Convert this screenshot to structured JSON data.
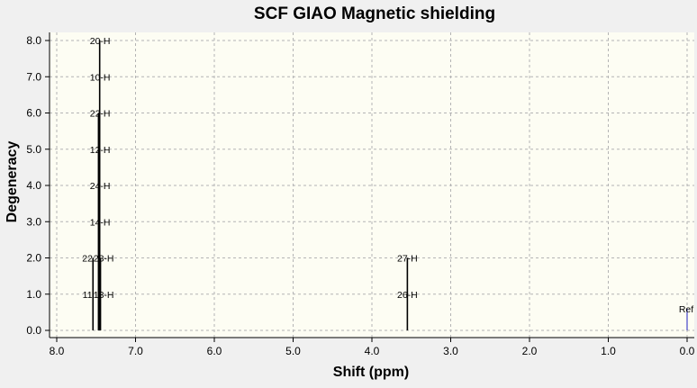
{
  "chart_data": {
    "type": "stick-spectrum",
    "title": "SCF GIAO Magnetic shielding",
    "xlabel": "Shift (ppm)",
    "ylabel": "Degeneracy",
    "xlim": [
      8.0,
      0.0
    ],
    "ylim": [
      0.0,
      8.0
    ],
    "x_reversed": true,
    "x_ticks": [
      "8.0",
      "7.0",
      "6.0",
      "5.0",
      "4.0",
      "3.0",
      "2.0",
      "1.0",
      "0.0"
    ],
    "y_ticks": [
      "0.0",
      "1.0",
      "2.0",
      "3.0",
      "4.0",
      "5.0",
      "6.0",
      "7.0",
      "8.0"
    ],
    "grid": true,
    "peaks": [
      {
        "x": 7.55,
        "height": 2,
        "label": "11"
      },
      {
        "x": 7.49,
        "height": 2,
        "label": "22"
      },
      {
        "x": 7.47,
        "height": 4,
        "label": "24"
      },
      {
        "x": 7.46,
        "height": 2,
        "label": "23"
      },
      {
        "x": 7.45,
        "height": 8,
        "label": "20-H"
      }
    ],
    "stacked_labels": [
      {
        "x": 7.45,
        "level": 1.0,
        "text": "11"
      },
      {
        "x": 7.45,
        "level": 1.0,
        "text": "13-H"
      },
      {
        "x": 7.45,
        "level": 2.0,
        "text": "22"
      },
      {
        "x": 7.45,
        "level": 2.0,
        "text": "23-H"
      },
      {
        "x": 7.45,
        "level": 3.0,
        "text": "14-H"
      },
      {
        "x": 7.45,
        "level": 4.0,
        "text": "24-H"
      },
      {
        "x": 7.45,
        "level": 5.0,
        "text": "12-H"
      },
      {
        "x": 7.45,
        "level": 6.0,
        "text": "22-H"
      },
      {
        "x": 7.45,
        "level": 7.0,
        "text": "10-H"
      },
      {
        "x": 7.45,
        "level": 8.0,
        "text": "20-H"
      },
      {
        "x": 3.55,
        "level": 1.0,
        "text": "26-H"
      },
      {
        "x": 3.55,
        "level": 2.0,
        "text": "27-H"
      },
      {
        "x": 0.0,
        "level": 0.6,
        "text": "Ref"
      }
    ],
    "sticks": [
      {
        "x": 7.54,
        "height": 2.0
      },
      {
        "x": 7.47,
        "height": 6.0
      },
      {
        "x": 7.455,
        "height": 8.0
      },
      {
        "x": 7.445,
        "height": 2.0
      },
      {
        "x": 3.55,
        "height": 2.0
      },
      {
        "x": 0.0,
        "height": 0.6,
        "reference": true
      }
    ],
    "colors": {
      "plot_background": "#fdfdf3",
      "window_background": "#f0f0f0",
      "stick": "#000000",
      "reference_stick": "#2020c0",
      "grid": "#b4b4b4"
    }
  }
}
